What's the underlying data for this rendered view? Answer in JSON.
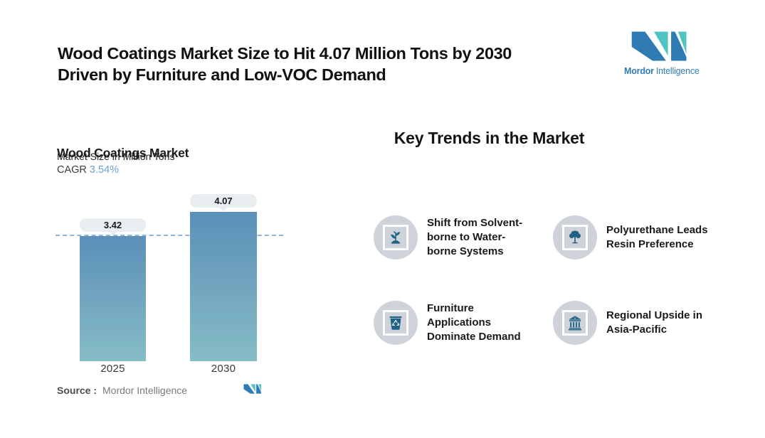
{
  "header": {
    "title_line1": "Wood Coatings Market Size to Hit 4.07 Million Tons by 2030",
    "title_line2": "Driven by Furniture and Low-VOC Demand"
  },
  "brand": {
    "name_bold": "Mordor",
    "name_regular": "Intelligence",
    "logo_blue": "#2F7CB5",
    "logo_teal": "#4FC4C2"
  },
  "chart": {
    "title": "Wood Coatings Market",
    "subtitle": "Market Size in Million Tons",
    "cagr_label": "CAGR",
    "cagr_value": "3.54%",
    "source_label": "Source :",
    "source_value": "Mordor Intelligence"
  },
  "chart_data": {
    "type": "bar",
    "title": "Wood Coatings Market",
    "subtitle": "Market Size in Million Tons",
    "ylabel": "Market Size in Million Tons",
    "cagr": "3.54%",
    "categories": [
      "2025",
      "2030"
    ],
    "values": [
      3.42,
      4.07
    ],
    "value_labels": [
      "3.42",
      "4.07"
    ],
    "reference_line_value": 3.42,
    "reference_line_style": "dashed",
    "grid": false,
    "legend": false,
    "bar_gradient_top": "#5B8FB9",
    "bar_gradient_bottom": "#85BDC6",
    "reference_line_color": "#8FB5D9",
    "label_pill_color": "#E8EDEF"
  },
  "trends": {
    "heading": "Key Trends in the Market",
    "icon_circle_color": "#CDD3D9",
    "icon_color": "#1E6286",
    "items": [
      {
        "icon": "plant-icon",
        "label": "Shift from Solvent-borne to Water-borne Systems",
        "lines": [
          "Shift from Solvent-",
          "borne to Water-",
          "borne Systems"
        ]
      },
      {
        "icon": "tree-icon",
        "label": "Polyurethane Leads Resin Preference",
        "lines": [
          "Polyurethane Leads",
          "Resin Preference"
        ]
      },
      {
        "icon": "recycle-bin-icon",
        "label": "Furniture Applications Dominate Demand",
        "lines": [
          "Furniture",
          "Applications",
          "Dominate Demand"
        ]
      },
      {
        "icon": "bank-icon",
        "label": "Regional Upside in Asia-Pacific",
        "lines": [
          "Regional Upside in",
          "Asia-Pacific"
        ]
      }
    ]
  }
}
